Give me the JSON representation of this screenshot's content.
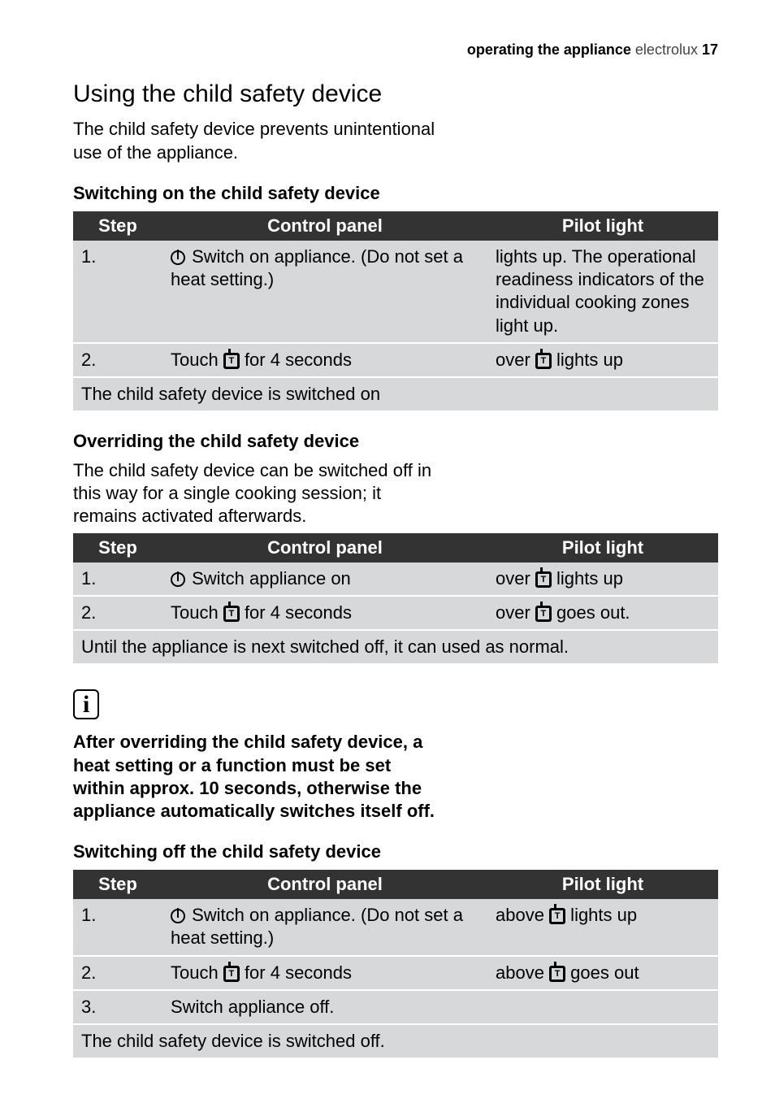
{
  "colors": {
    "table_header_bg": "#333333",
    "table_header_fg": "#ffffff",
    "table_cell_bg": "#d7d8d9",
    "page_bg": "#ffffff",
    "text": "#000000"
  },
  "typography": {
    "body_fontsize_pt": 16,
    "title_fontsize_pt": 22,
    "header_fontsize_pt": 13,
    "font_family": "Helvetica"
  },
  "header": {
    "section": "operating the appliance",
    "brand": " electrolux ",
    "page_num": "17"
  },
  "title": "Using the child safety device",
  "intro": "The child safety device prevents unintentional use of the appliance.",
  "table_headers": {
    "step": "Step",
    "control": "Control panel",
    "pilot": "Pilot light"
  },
  "t1": {
    "heading": "Switching on the child safety device",
    "rows": [
      {
        "step": "1.",
        "control_after_icon": " Switch on appliance. (Do not set a heat setting.)",
        "pilot": "lights up. The operational readiness indicators of the individual cooking zones light up."
      },
      {
        "step": "2.",
        "control_before_icon": "Touch ",
        "control_after_icon": " for 4 seconds",
        "pilot_before_icon": "over ",
        "pilot_after_icon": " lights up"
      }
    ],
    "footer": "The child safety device is switched on"
  },
  "t2": {
    "heading": "Overriding the child safety device",
    "intro": "The child safety device can be switched off in this way for a single cooking session; it remains activated afterwards.",
    "rows": [
      {
        "step": "1.",
        "control_after_icon": " Switch appliance on",
        "pilot_before_icon": "over ",
        "pilot_after_icon": " lights up"
      },
      {
        "step": "2.",
        "control_before_icon": "Touch ",
        "control_after_icon": " for 4 seconds",
        "pilot_before_icon": "over ",
        "pilot_after_icon": " goes out."
      }
    ],
    "footer": "Until the appliance is next switched off, it can used as normal."
  },
  "note": "After overriding the child safety device, a heat setting or a function must be set within approx. 10 seconds, otherwise the appliance automatically switches itself off.",
  "t3": {
    "heading": "Switching off the child safety device",
    "rows": [
      {
        "step": "1.",
        "control_after_icon": " Switch on appliance. (Do not set a heat setting.)",
        "pilot_before_icon": "above ",
        "pilot_after_icon": " lights up"
      },
      {
        "step": "2.",
        "control_before_icon": "Touch ",
        "control_after_icon": " for 4 seconds",
        "pilot_before_icon": "above ",
        "pilot_after_icon": " goes out"
      },
      {
        "step": "3.",
        "control_plain": "Switch appliance off.",
        "pilot_plain": ""
      }
    ],
    "footer": "The child safety device is switched off."
  }
}
